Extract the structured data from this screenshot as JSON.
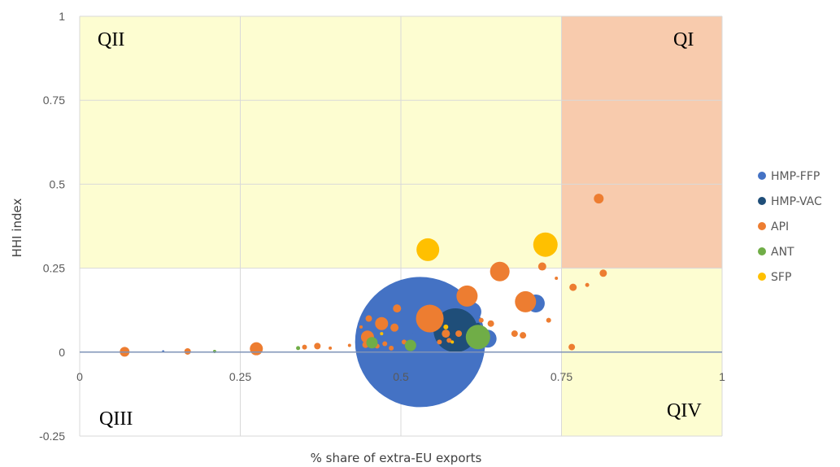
{
  "chart_data": {
    "type": "scatter",
    "subtype": "bubble",
    "xlabel": "% share of extra-EU exports",
    "ylabel": "HHI index",
    "xlim": [
      0,
      1
    ],
    "ylim": [
      -0.25,
      1
    ],
    "x_ticks": [
      "0",
      "0.25",
      "0.5",
      "0.75",
      "1"
    ],
    "y_ticks": [
      "-0.25",
      "0",
      "0.25",
      "0.5",
      "0.75",
      "1"
    ],
    "grid": true,
    "legend_position": "right",
    "quadrants": {
      "QI": "QI",
      "QII": "QII",
      "QIII": "QIII",
      "QIV": "QIV"
    },
    "quadrant_colors": {
      "QI": "#f8cbad",
      "QII": "#fdfdd1",
      "QIV": "#fdfdd1"
    },
    "series": [
      {
        "name": "HMP-FFP",
        "color": "#4472c4",
        "points": [
          {
            "x": 0.53,
            "y": 0.03,
            "r": 80
          },
          {
            "x": 0.61,
            "y": 0.12,
            "r": 12
          },
          {
            "x": 0.71,
            "y": 0.145,
            "r": 11
          },
          {
            "x": 0.635,
            "y": 0.04,
            "r": 11
          },
          {
            "x": 0.13,
            "y": 0.002,
            "r": 1.5
          },
          {
            "x": 0.52,
            "y": 0.05,
            "r": 3
          },
          {
            "x": 0.56,
            "y": 0.07,
            "r": 3
          }
        ]
      },
      {
        "name": "HMP-VAC",
        "color": "#1f4e79",
        "points": [
          {
            "x": 0.585,
            "y": 0.065,
            "r": 27
          },
          {
            "x": 0.62,
            "y": 0.08,
            "r": 3
          }
        ]
      },
      {
        "name": "API",
        "color": "#ed7d31",
        "points": [
          {
            "x": 0.808,
            "y": 0.457,
            "r": 6
          },
          {
            "x": 0.815,
            "y": 0.235,
            "r": 4.5
          },
          {
            "x": 0.72,
            "y": 0.255,
            "r": 5
          },
          {
            "x": 0.654,
            "y": 0.24,
            "r": 12
          },
          {
            "x": 0.603,
            "y": 0.167,
            "r": 13
          },
          {
            "x": 0.694,
            "y": 0.15,
            "r": 13
          },
          {
            "x": 0.545,
            "y": 0.1,
            "r": 17
          },
          {
            "x": 0.768,
            "y": 0.193,
            "r": 4.5
          },
          {
            "x": 0.79,
            "y": 0.2,
            "r": 2.5
          },
          {
            "x": 0.742,
            "y": 0.22,
            "r": 2
          },
          {
            "x": 0.73,
            "y": 0.095,
            "r": 3
          },
          {
            "x": 0.766,
            "y": 0.015,
            "r": 4
          },
          {
            "x": 0.69,
            "y": 0.05,
            "r": 4
          },
          {
            "x": 0.677,
            "y": 0.055,
            "r": 4
          },
          {
            "x": 0.64,
            "y": 0.085,
            "r": 4
          },
          {
            "x": 0.625,
            "y": 0.095,
            "r": 3
          },
          {
            "x": 0.59,
            "y": 0.055,
            "r": 4
          },
          {
            "x": 0.47,
            "y": 0.085,
            "r": 8
          },
          {
            "x": 0.494,
            "y": 0.13,
            "r": 5
          },
          {
            "x": 0.45,
            "y": 0.1,
            "r": 4
          },
          {
            "x": 0.49,
            "y": 0.073,
            "r": 5
          },
          {
            "x": 0.448,
            "y": 0.045,
            "r": 8
          },
          {
            "x": 0.445,
            "y": 0.022,
            "r": 4
          },
          {
            "x": 0.463,
            "y": 0.018,
            "r": 3
          },
          {
            "x": 0.475,
            "y": 0.025,
            "r": 3
          },
          {
            "x": 0.485,
            "y": 0.012,
            "r": 3
          },
          {
            "x": 0.505,
            "y": 0.03,
            "r": 3
          },
          {
            "x": 0.56,
            "y": 0.03,
            "r": 3
          },
          {
            "x": 0.57,
            "y": 0.055,
            "r": 5
          },
          {
            "x": 0.438,
            "y": 0.075,
            "r": 2
          },
          {
            "x": 0.42,
            "y": 0.02,
            "r": 2
          },
          {
            "x": 0.39,
            "y": 0.012,
            "r": 2
          },
          {
            "x": 0.37,
            "y": 0.018,
            "r": 4
          },
          {
            "x": 0.35,
            "y": 0.015,
            "r": 3
          },
          {
            "x": 0.275,
            "y": 0.01,
            "r": 8
          },
          {
            "x": 0.168,
            "y": 0.002,
            "r": 4
          },
          {
            "x": 0.07,
            "y": 0.001,
            "r": 6
          },
          {
            "x": 0.575,
            "y": 0.035,
            "r": 3
          }
        ]
      },
      {
        "name": "ANT",
        "color": "#70ad47",
        "points": [
          {
            "x": 0.62,
            "y": 0.045,
            "r": 15
          },
          {
            "x": 0.515,
            "y": 0.02,
            "r": 7
          },
          {
            "x": 0.455,
            "y": 0.028,
            "r": 7
          },
          {
            "x": 0.34,
            "y": 0.012,
            "r": 2.5
          },
          {
            "x": 0.21,
            "y": 0.002,
            "r": 2
          }
        ]
      },
      {
        "name": "SFP",
        "color": "#ffc000",
        "points": [
          {
            "x": 0.542,
            "y": 0.305,
            "r": 14
          },
          {
            "x": 0.725,
            "y": 0.32,
            "r": 15
          },
          {
            "x": 0.57,
            "y": 0.075,
            "r": 3
          },
          {
            "x": 0.47,
            "y": 0.055,
            "r": 2
          },
          {
            "x": 0.58,
            "y": 0.03,
            "r": 2
          }
        ]
      }
    ]
  }
}
